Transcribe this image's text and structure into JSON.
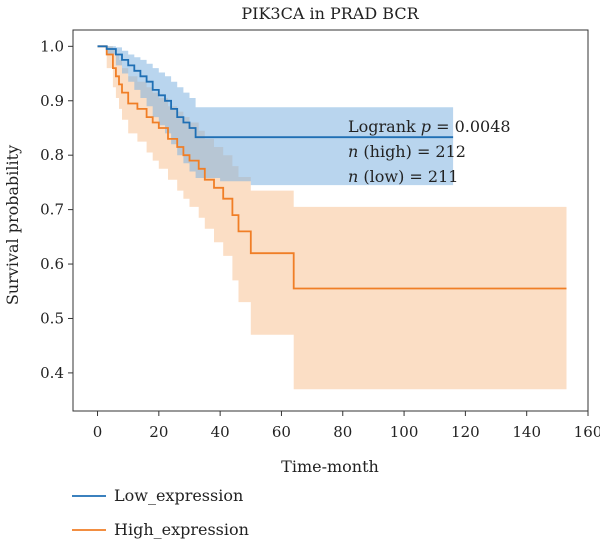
{
  "chart_data": {
    "type": "line",
    "title": "PIK3CA in PRAD BCR",
    "xlabel": "Time-month",
    "ylabel": "Survival probability",
    "xlim": [
      -8,
      160
    ],
    "ylim": [
      0.33,
      1.03
    ],
    "xticks": [
      0,
      20,
      40,
      60,
      80,
      100,
      120,
      140,
      160
    ],
    "yticks": [
      0.4,
      0.5,
      0.6,
      0.7,
      0.8,
      0.9,
      1.0
    ],
    "xtick_labels": [
      "0",
      "20",
      "40",
      "60",
      "80",
      "100",
      "120",
      "140",
      "160"
    ],
    "ytick_labels": [
      "0.4",
      "0.5",
      "0.6",
      "0.7",
      "0.8",
      "0.9",
      "1.0"
    ],
    "grid": false,
    "legend_position": "bottom-left outside",
    "annotations": {
      "logrank_prefix": "Logrank ",
      "logrank_p_symbol": "p",
      "logrank_value": " = 0.0048",
      "n_high_symbol": "n",
      "n_high_text": " (high) = 212",
      "n_low_symbol": "n",
      "n_low_text": " (low) = 211"
    },
    "series": [
      {
        "name": "Low_expression",
        "color": "#1f6fb4",
        "band_color": "#7fb2e0",
        "steps": [
          [
            0,
            1.0
          ],
          [
            3,
            0.995
          ],
          [
            6,
            0.985
          ],
          [
            8,
            0.975
          ],
          [
            10,
            0.965
          ],
          [
            12,
            0.955
          ],
          [
            14,
            0.945
          ],
          [
            16,
            0.935
          ],
          [
            18,
            0.92
          ],
          [
            20,
            0.91
          ],
          [
            22,
            0.9
          ],
          [
            24,
            0.885
          ],
          [
            26,
            0.87
          ],
          [
            28,
            0.86
          ],
          [
            30,
            0.85
          ],
          [
            32,
            0.833
          ],
          [
            116,
            0.833
          ]
        ],
        "lower": [
          [
            0,
            1.0
          ],
          [
            3,
            0.985
          ],
          [
            6,
            0.965
          ],
          [
            8,
            0.95
          ],
          [
            10,
            0.935
          ],
          [
            12,
            0.92
          ],
          [
            14,
            0.905
          ],
          [
            16,
            0.89
          ],
          [
            18,
            0.87
          ],
          [
            20,
            0.855
          ],
          [
            22,
            0.84
          ],
          [
            24,
            0.82
          ],
          [
            26,
            0.8
          ],
          [
            28,
            0.785
          ],
          [
            30,
            0.77
          ],
          [
            32,
            0.758
          ],
          [
            40,
            0.752
          ],
          [
            50,
            0.745
          ],
          [
            116,
            0.745
          ]
        ],
        "upper": [
          [
            0,
            1.0
          ],
          [
            3,
            1.0
          ],
          [
            6,
            0.998
          ],
          [
            8,
            0.992
          ],
          [
            10,
            0.985
          ],
          [
            12,
            0.98
          ],
          [
            14,
            0.975
          ],
          [
            16,
            0.968
          ],
          [
            18,
            0.96
          ],
          [
            20,
            0.952
          ],
          [
            22,
            0.945
          ],
          [
            24,
            0.935
          ],
          [
            26,
            0.925
          ],
          [
            28,
            0.915
          ],
          [
            30,
            0.905
          ],
          [
            32,
            0.888
          ],
          [
            116,
            0.888
          ]
        ]
      },
      {
        "name": "High_expression",
        "color": "#f07e26",
        "band_color": "#f9c89e",
        "steps": [
          [
            0,
            1.0
          ],
          [
            3,
            0.985
          ],
          [
            5,
            0.96
          ],
          [
            6,
            0.945
          ],
          [
            7,
            0.93
          ],
          [
            8,
            0.915
          ],
          [
            10,
            0.895
          ],
          [
            13,
            0.885
          ],
          [
            16,
            0.87
          ],
          [
            18,
            0.86
          ],
          [
            20,
            0.85
          ],
          [
            23,
            0.83
          ],
          [
            26,
            0.815
          ],
          [
            28,
            0.8
          ],
          [
            30,
            0.79
          ],
          [
            33,
            0.775
          ],
          [
            35,
            0.755
          ],
          [
            38,
            0.74
          ],
          [
            41,
            0.72
          ],
          [
            44,
            0.69
          ],
          [
            46,
            0.66
          ],
          [
            50,
            0.62
          ],
          [
            64,
            0.555
          ],
          [
            153,
            0.555
          ]
        ],
        "lower": [
          [
            0,
            1.0
          ],
          [
            3,
            0.96
          ],
          [
            5,
            0.925
          ],
          [
            6,
            0.905
          ],
          [
            7,
            0.885
          ],
          [
            8,
            0.865
          ],
          [
            10,
            0.84
          ],
          [
            13,
            0.825
          ],
          [
            16,
            0.805
          ],
          [
            18,
            0.79
          ],
          [
            20,
            0.775
          ],
          [
            23,
            0.755
          ],
          [
            26,
            0.735
          ],
          [
            28,
            0.72
          ],
          [
            30,
            0.705
          ],
          [
            33,
            0.685
          ],
          [
            35,
            0.665
          ],
          [
            38,
            0.64
          ],
          [
            41,
            0.615
          ],
          [
            44,
            0.57
          ],
          [
            46,
            0.53
          ],
          [
            50,
            0.47
          ],
          [
            64,
            0.37
          ],
          [
            153,
            0.37
          ]
        ],
        "upper": [
          [
            0,
            1.0
          ],
          [
            3,
            1.0
          ],
          [
            5,
            0.995
          ],
          [
            6,
            0.985
          ],
          [
            7,
            0.975
          ],
          [
            8,
            0.96
          ],
          [
            10,
            0.945
          ],
          [
            13,
            0.935
          ],
          [
            16,
            0.925
          ],
          [
            18,
            0.915
          ],
          [
            20,
            0.905
          ],
          [
            23,
            0.89
          ],
          [
            26,
            0.88
          ],
          [
            28,
            0.87
          ],
          [
            30,
            0.86
          ],
          [
            33,
            0.845
          ],
          [
            35,
            0.83
          ],
          [
            38,
            0.815
          ],
          [
            41,
            0.8
          ],
          [
            44,
            0.78
          ],
          [
            46,
            0.76
          ],
          [
            50,
            0.735
          ],
          [
            64,
            0.705
          ],
          [
            153,
            0.705
          ]
        ]
      }
    ]
  }
}
